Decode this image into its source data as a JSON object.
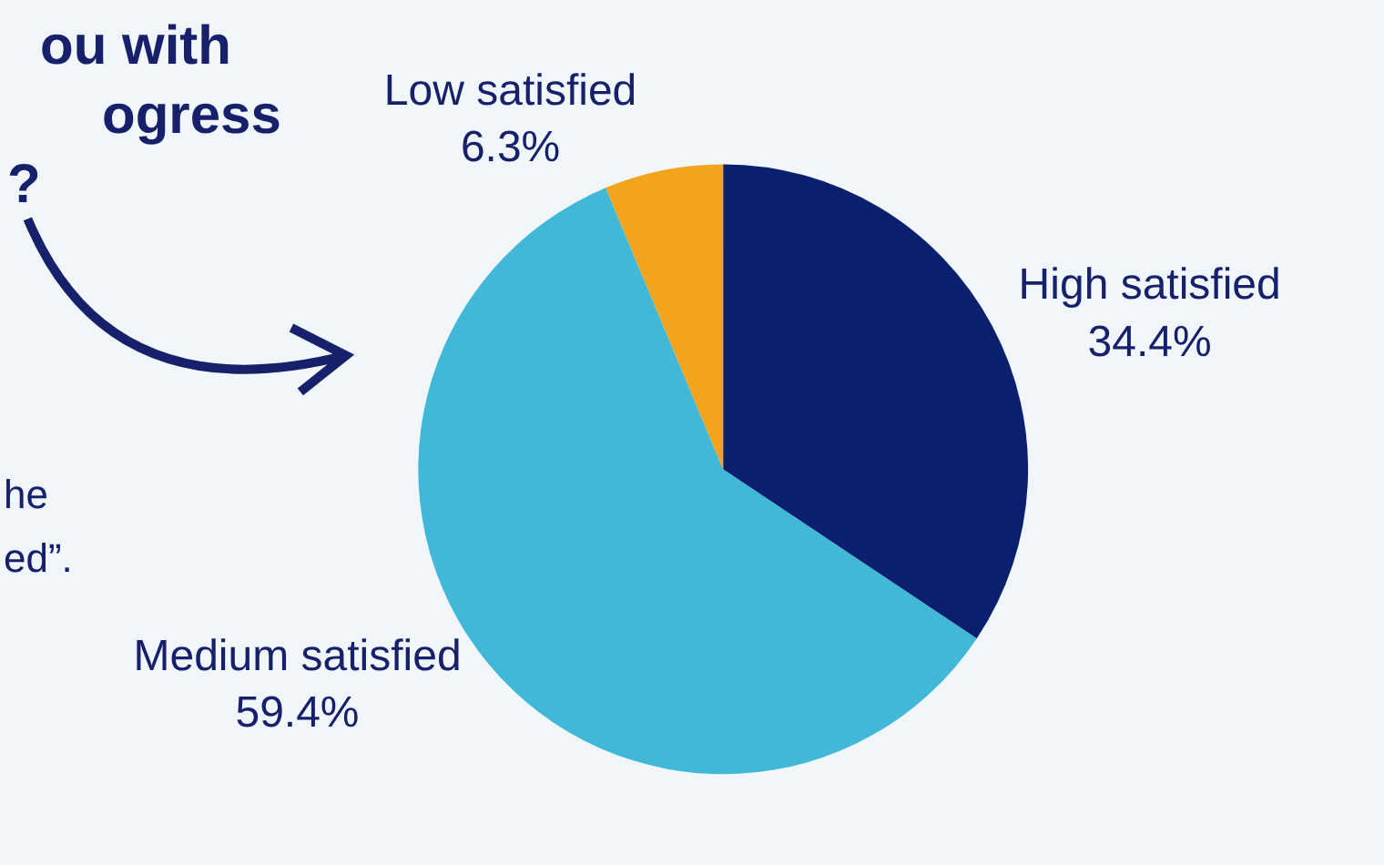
{
  "chart_data": {
    "type": "pie",
    "categories": [
      "High satisfied",
      "Medium satisfied",
      "Low satisfied"
    ],
    "values": [
      34.4,
      59.4,
      6.3
    ],
    "colors": [
      "#0a1f6e",
      "#42b8d8",
      "#f2a41f"
    ],
    "value_labels": [
      "34.4%",
      "59.4%",
      "6.3%"
    ],
    "annotations": [
      "ou with",
      "ogress",
      "?",
      "he",
      "ed”."
    ],
    "legend": false
  }
}
